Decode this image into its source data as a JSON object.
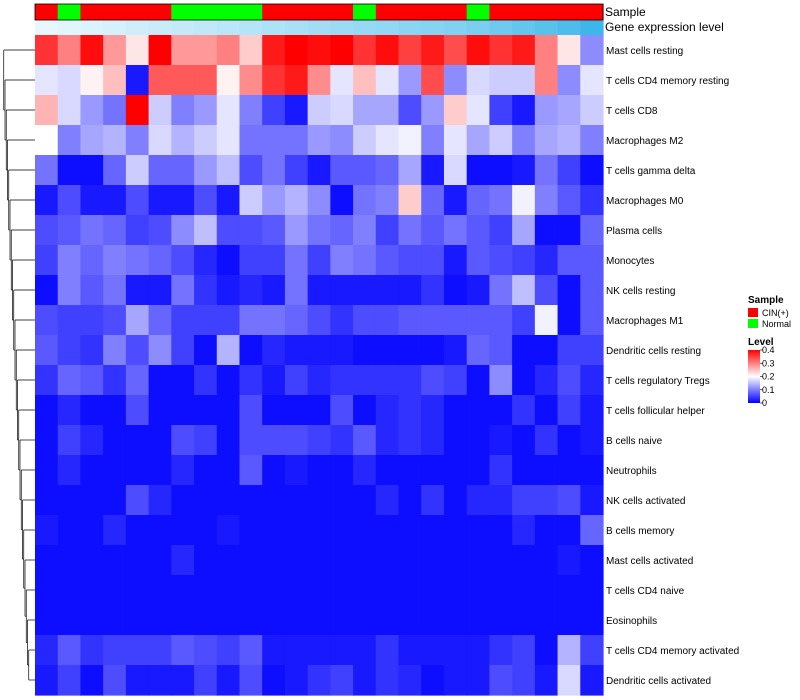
{
  "chart_data": {
    "type": "heatmap",
    "annotation_tracks": [
      {
        "label": "Sample",
        "kind": "sample"
      },
      {
        "label": "Gene expression level",
        "kind": "expression"
      }
    ],
    "sample_groups": [
      "CIN",
      "Normal",
      "CIN",
      "CIN",
      "CIN",
      "CIN",
      "Normal",
      "Normal",
      "Normal",
      "Normal",
      "CIN",
      "CIN",
      "CIN",
      "CIN",
      "Normal",
      "CIN",
      "CIN",
      "CIN",
      "CIN",
      "Normal",
      "CIN",
      "CIN",
      "CIN",
      "CIN",
      "CIN"
    ],
    "expression_level": [
      0.1,
      0.12,
      0.14,
      0.16,
      0.18,
      0.2,
      0.22,
      0.24,
      0.26,
      0.28,
      0.3,
      0.32,
      0.34,
      0.36,
      0.38,
      0.4,
      0.42,
      0.44,
      0.46,
      0.48,
      0.52,
      0.56,
      0.6,
      0.64,
      0.7
    ],
    "rows": [
      "Mast cells resting",
      "T cells CD4 memory resting",
      "T cells CD8",
      "Macrophages M2",
      "T cells gamma delta",
      "Macrophages M0",
      "Plasma cells",
      "Monocytes",
      "NK cells resting",
      "Macrophages M1",
      "Dendritic cells resting",
      "T cells regulatory  Tregs",
      "T cells follicular helper",
      "B cells naive",
      "Neutrophils",
      "NK cells activated",
      "B cells memory",
      "Mast cells activated",
      "T cells CD4 naive",
      "Eosinophils",
      "T cells CD4 memory activated",
      "Dendritic cells activated"
    ],
    "values": [
      [
        0.36,
        0.3,
        0.39,
        0.28,
        0.22,
        0.4,
        0.28,
        0.28,
        0.3,
        0.24,
        0.38,
        0.4,
        0.39,
        0.4,
        0.36,
        0.39,
        0.35,
        0.38,
        0.34,
        0.39,
        0.36,
        0.38,
        0.3,
        0.22,
        0.11
      ],
      [
        0.18,
        0.17,
        0.21,
        0.25,
        0.02,
        0.33,
        0.33,
        0.33,
        0.21,
        0.29,
        0.36,
        0.38,
        0.29,
        0.18,
        0.25,
        0.18,
        0.12,
        0.34,
        0.11,
        0.17,
        0.16,
        0.16,
        0.3,
        0.11,
        0.18
      ],
      [
        0.26,
        0.17,
        0.12,
        0.09,
        0.4,
        0.16,
        0.1,
        0.12,
        0.18,
        0.1,
        0.05,
        0.02,
        0.16,
        0.17,
        0.13,
        0.13,
        0.06,
        0.12,
        0.24,
        0.18,
        0.05,
        0.02,
        0.12,
        0.13,
        0.16
      ],
      [
        0.2,
        0.1,
        0.13,
        0.14,
        0.1,
        0.17,
        0.14,
        0.16,
        0.18,
        0.09,
        0.09,
        0.09,
        0.12,
        0.11,
        0.16,
        0.18,
        0.19,
        0.1,
        0.18,
        0.13,
        0.16,
        0.1,
        0.13,
        0.14,
        0.1
      ],
      [
        0.09,
        0.01,
        0.01,
        0.08,
        0.16,
        0.08,
        0.08,
        0.12,
        0.15,
        0.06,
        0.09,
        0.05,
        0.02,
        0.07,
        0.07,
        0.08,
        0.13,
        0.02,
        0.17,
        0.01,
        0.01,
        0.02,
        0.09,
        0.05,
        0.01
      ],
      [
        0.02,
        0.06,
        0.02,
        0.02,
        0.06,
        0.02,
        0.02,
        0.06,
        0.02,
        0.16,
        0.12,
        0.14,
        0.11,
        0.01,
        0.09,
        0.1,
        0.24,
        0.08,
        0.02,
        0.08,
        0.09,
        0.19,
        0.1,
        0.07,
        0.04
      ],
      [
        0.06,
        0.07,
        0.09,
        0.08,
        0.05,
        0.06,
        0.11,
        0.15,
        0.06,
        0.06,
        0.07,
        0.12,
        0.09,
        0.08,
        0.1,
        0.05,
        0.09,
        0.07,
        0.09,
        0.07,
        0.05,
        0.13,
        0.01,
        0.01,
        0.08
      ],
      [
        0.05,
        0.1,
        0.08,
        0.1,
        0.09,
        0.08,
        0.06,
        0.03,
        0.01,
        0.05,
        0.05,
        0.09,
        0.05,
        0.1,
        0.09,
        0.07,
        0.06,
        0.06,
        0.02,
        0.07,
        0.06,
        0.05,
        0.03,
        0.07,
        0.07
      ],
      [
        0.01,
        0.1,
        0.07,
        0.09,
        0.02,
        0.02,
        0.09,
        0.04,
        0.02,
        0.03,
        0.02,
        0.09,
        0.02,
        0.02,
        0.02,
        0.02,
        0.02,
        0.04,
        0.01,
        0.02,
        0.09,
        0.15,
        0.06,
        0.01,
        0.07
      ],
      [
        0.06,
        0.05,
        0.05,
        0.06,
        0.13,
        0.08,
        0.05,
        0.05,
        0.05,
        0.09,
        0.09,
        0.08,
        0.06,
        0.04,
        0.06,
        0.06,
        0.07,
        0.07,
        0.07,
        0.07,
        0.07,
        0.05,
        0.19,
        0.01,
        0.07
      ],
      [
        0.07,
        0.05,
        0.04,
        0.1,
        0.06,
        0.11,
        0.05,
        0.01,
        0.14,
        0.01,
        0.03,
        0.02,
        0.02,
        0.02,
        0.01,
        0.01,
        0.01,
        0.01,
        0.02,
        0.08,
        0.07,
        0.01,
        0.01,
        0.05,
        0.05
      ],
      [
        0.04,
        0.08,
        0.07,
        0.04,
        0.08,
        0.01,
        0.01,
        0.04,
        0.01,
        0.04,
        0.02,
        0.05,
        0.03,
        0.04,
        0.04,
        0.04,
        0.04,
        0.06,
        0.05,
        0.01,
        0.11,
        0.01,
        0.03,
        0.06,
        0.03
      ],
      [
        0.01,
        0.03,
        0.01,
        0.01,
        0.06,
        0.01,
        0.01,
        0.01,
        0.01,
        0.06,
        0.01,
        0.01,
        0.01,
        0.06,
        0.01,
        0.03,
        0.04,
        0.03,
        0.01,
        0.01,
        0.01,
        0.04,
        0.01,
        0.05,
        0.02
      ],
      [
        0.01,
        0.05,
        0.03,
        0.01,
        0.01,
        0.01,
        0.06,
        0.05,
        0.01,
        0.06,
        0.06,
        0.06,
        0.05,
        0.04,
        0.07,
        0.03,
        0.04,
        0.03,
        0.01,
        0.01,
        0.02,
        0.01,
        0.04,
        0.01,
        0.02
      ],
      [
        0.01,
        0.03,
        0.01,
        0.01,
        0.01,
        0.01,
        0.03,
        0.01,
        0.01,
        0.07,
        0.01,
        0.02,
        0.01,
        0.01,
        0.03,
        0.01,
        0.01,
        0.01,
        0.01,
        0.01,
        0.04,
        0.01,
        0.01,
        0.01,
        0.01
      ],
      [
        0.01,
        0.01,
        0.01,
        0.01,
        0.06,
        0.03,
        0.01,
        0.01,
        0.01,
        0.01,
        0.01,
        0.01,
        0.01,
        0.01,
        0.01,
        0.03,
        0.01,
        0.04,
        0.01,
        0.03,
        0.03,
        0.05,
        0.05,
        0.06,
        0.02
      ],
      [
        0.02,
        0.01,
        0.01,
        0.03,
        0.01,
        0.01,
        0.01,
        0.01,
        0.02,
        0.01,
        0.01,
        0.01,
        0.01,
        0.01,
        0.01,
        0.01,
        0.01,
        0.01,
        0.01,
        0.01,
        0.01,
        0.03,
        0.01,
        0.01,
        0.08
      ],
      [
        0.01,
        0.01,
        0.01,
        0.01,
        0.01,
        0.01,
        0.03,
        0.01,
        0.01,
        0.01,
        0.01,
        0.01,
        0.01,
        0.01,
        0.01,
        0.01,
        0.01,
        0.01,
        0.01,
        0.01,
        0.01,
        0.01,
        0.01,
        0.02,
        0.01
      ],
      [
        0.01,
        0.01,
        0.01,
        0.01,
        0.01,
        0.01,
        0.01,
        0.01,
        0.01,
        0.01,
        0.01,
        0.01,
        0.01,
        0.01,
        0.01,
        0.01,
        0.01,
        0.01,
        0.01,
        0.01,
        0.01,
        0.01,
        0.01,
        0.01,
        0.01
      ],
      [
        0.01,
        0.01,
        0.01,
        0.01,
        0.01,
        0.01,
        0.01,
        0.01,
        0.01,
        0.01,
        0.01,
        0.01,
        0.01,
        0.01,
        0.01,
        0.01,
        0.01,
        0.01,
        0.01,
        0.01,
        0.01,
        0.01,
        0.01,
        0.01,
        0.01
      ],
      [
        0.03,
        0.07,
        0.04,
        0.05,
        0.05,
        0.05,
        0.07,
        0.06,
        0.05,
        0.07,
        0.02,
        0.02,
        0.02,
        0.02,
        0.02,
        0.04,
        0.02,
        0.02,
        0.02,
        0.02,
        0.04,
        0.05,
        0.01,
        0.14,
        0.05
      ],
      [
        0.02,
        0.05,
        0.01,
        0.06,
        0.02,
        0.02,
        0.02,
        0.05,
        0.02,
        0.06,
        0.01,
        0.02,
        0.04,
        0.05,
        0.02,
        0.04,
        0.03,
        0.01,
        0.02,
        0.02,
        0.06,
        0.05,
        0.02,
        0.17,
        0.02
      ]
    ],
    "legend": {
      "sample_title": "Sample",
      "sample_entries": [
        {
          "key": "CIN",
          "label": "CIN(+)",
          "color": "#ff0000"
        },
        {
          "key": "Normal",
          "label": "Normal",
          "color": "#00ff00"
        }
      ],
      "level_title": "Level",
      "level_ticks": [
        {
          "value": 0.4,
          "label": "0.4"
        },
        {
          "value": 0.3,
          "label": "0.3"
        },
        {
          "value": 0.2,
          "label": "0.2"
        },
        {
          "value": 0.1,
          "label": "0.1"
        },
        {
          "value": 0.0,
          "label": "0"
        }
      ],
      "level_range": [
        0,
        0.4
      ]
    },
    "colors": {
      "low": "#0000ff",
      "mid": "#ffffff",
      "high": "#ff0000",
      "expression_low": "#e6f7fd",
      "expression_high": "#3db7e9",
      "dendrogram": "#000000"
    }
  }
}
